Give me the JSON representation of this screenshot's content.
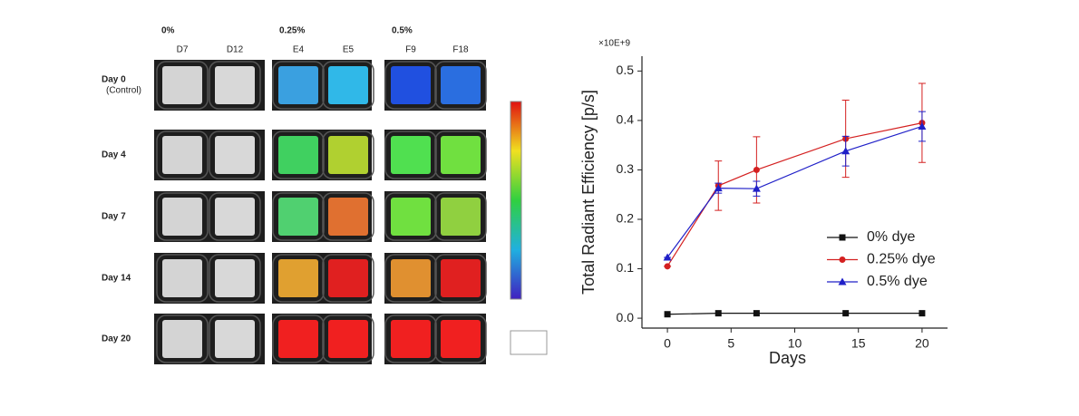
{
  "image_panel": {
    "groups": [
      "0%",
      "0.25%",
      "0.5%"
    ],
    "samples": [
      "D7",
      "D12",
      "E4",
      "E5",
      "F9",
      "F18"
    ],
    "rows": [
      {
        "label": "Day 0",
        "sublabel": "(Control)",
        "colors": [
          "#d4d4d4",
          "#d8d8d8",
          "#3aa0e0",
          "#30b8e8",
          "#2050e0",
          "#2a6ee0"
        ]
      },
      {
        "label": "Day 4",
        "colors": [
          "#d4d4d4",
          "#d8d8d8",
          "#40d060",
          "#b0d030",
          "#50e050",
          "#70e040"
        ]
      },
      {
        "label": "Day 7",
        "colors": [
          "#d4d4d4",
          "#d8d8d8",
          "#50d070",
          "#e07030",
          "#70e040",
          "#90d040"
        ]
      },
      {
        "label": "Day 14",
        "colors": [
          "#d4d4d4",
          "#d8d8d8",
          "#e0a030",
          "#e02020",
          "#e09030",
          "#e02020"
        ]
      },
      {
        "label": "Day 20",
        "colors": [
          "#d4d4d4",
          "#d8d8d8",
          "#f02020",
          "#f02020",
          "#f02020",
          "#f02020"
        ]
      }
    ]
  },
  "chart_data": {
    "type": "line",
    "multiplier": "×10E+9",
    "x_label": "Days",
    "y_label": "Total Radiant Efficiency [p/s]",
    "x": [
      0,
      4,
      7,
      14,
      20
    ],
    "xlim": [
      -2,
      22
    ],
    "ylim": [
      -0.02,
      0.53
    ],
    "xticks": [
      0,
      5,
      10,
      15,
      20
    ],
    "yticks": [
      {
        "value": 0,
        "label": "0.0"
      },
      0.1,
      0.2,
      0.3,
      0.4,
      0.5
    ],
    "legend": "lower right",
    "series": [
      {
        "name": "0% dye",
        "color": "#111111",
        "marker": "square",
        "values": [
          0.008,
          0.01,
          0.01,
          0.01,
          0.01
        ]
      },
      {
        "name": "0.25% dye",
        "color": "#d42020",
        "marker": "circle",
        "values": [
          0.105,
          0.268,
          0.3,
          0.363,
          0.395
        ],
        "errors": [
          0,
          0.05,
          0.067,
          0.078,
          0.08
        ]
      },
      {
        "name": "0.5% dye",
        "color": "#2020c8",
        "marker": "triangle",
        "values": [
          0.123,
          0.263,
          0.262,
          0.338,
          0.388
        ],
        "errors": [
          0,
          0.01,
          0.015,
          0.03,
          0.03
        ]
      }
    ]
  }
}
